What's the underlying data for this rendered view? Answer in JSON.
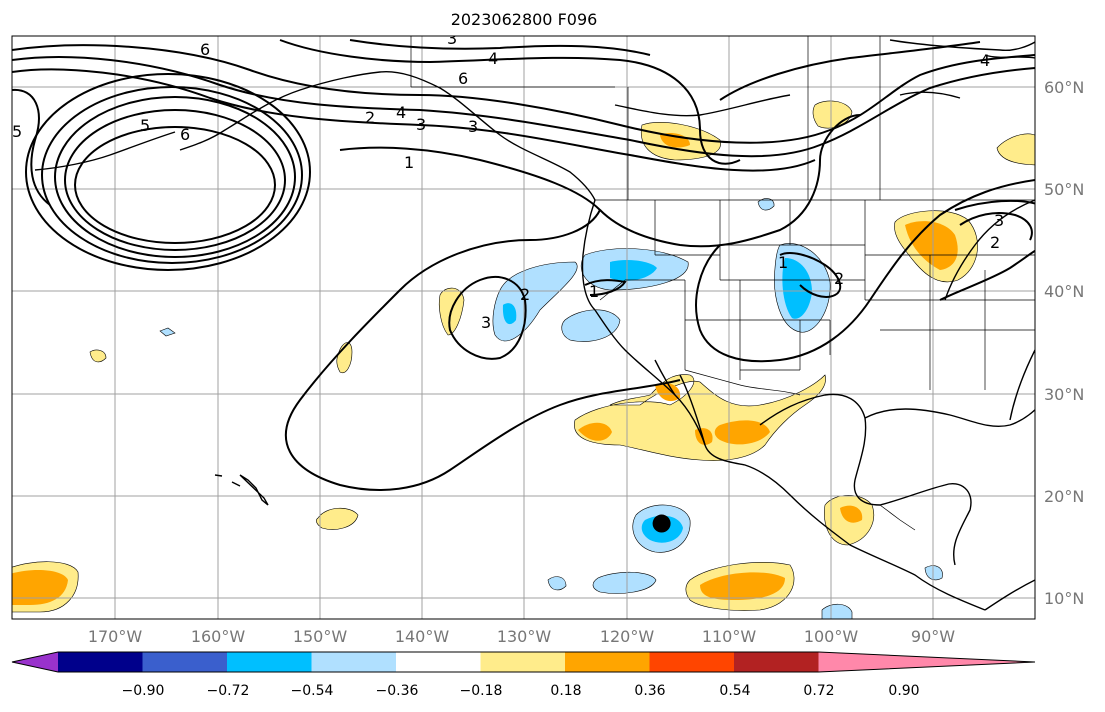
{
  "title": "2023062800 F096",
  "map": {
    "projection": "plate-carree",
    "lon_range": [
      -180,
      -80
    ],
    "lat_range": [
      8,
      66
    ],
    "gridlines": true,
    "contour_field_labels": [
      "1",
      "2",
      "3",
      "4",
      "5",
      "6"
    ],
    "marker": {
      "lon": -116.5,
      "lat": 17.5,
      "color": "#000000"
    }
  },
  "lat_labels": [
    "60°N",
    "50°N",
    "40°N",
    "30°N",
    "20°N",
    "10°N"
  ],
  "lon_labels": [
    "170°W",
    "160°W",
    "150°W",
    "140°W",
    "130°W",
    "120°W",
    "110°W",
    "100°W",
    "90°W"
  ],
  "colorbar": {
    "tick_labels": [
      "−0.90",
      "−0.72",
      "−0.54",
      "−0.36",
      "−0.18",
      "0.18",
      "0.36",
      "0.54",
      "0.72",
      "0.90"
    ],
    "colors": [
      "#9932cc",
      "#00008b",
      "#3a5fcd",
      "#00bfff",
      "#b0e0ff",
      "#ffffff",
      "#ffec8b",
      "#ffa500",
      "#ff4500",
      "#b22222",
      "#ff88aa"
    ]
  }
}
